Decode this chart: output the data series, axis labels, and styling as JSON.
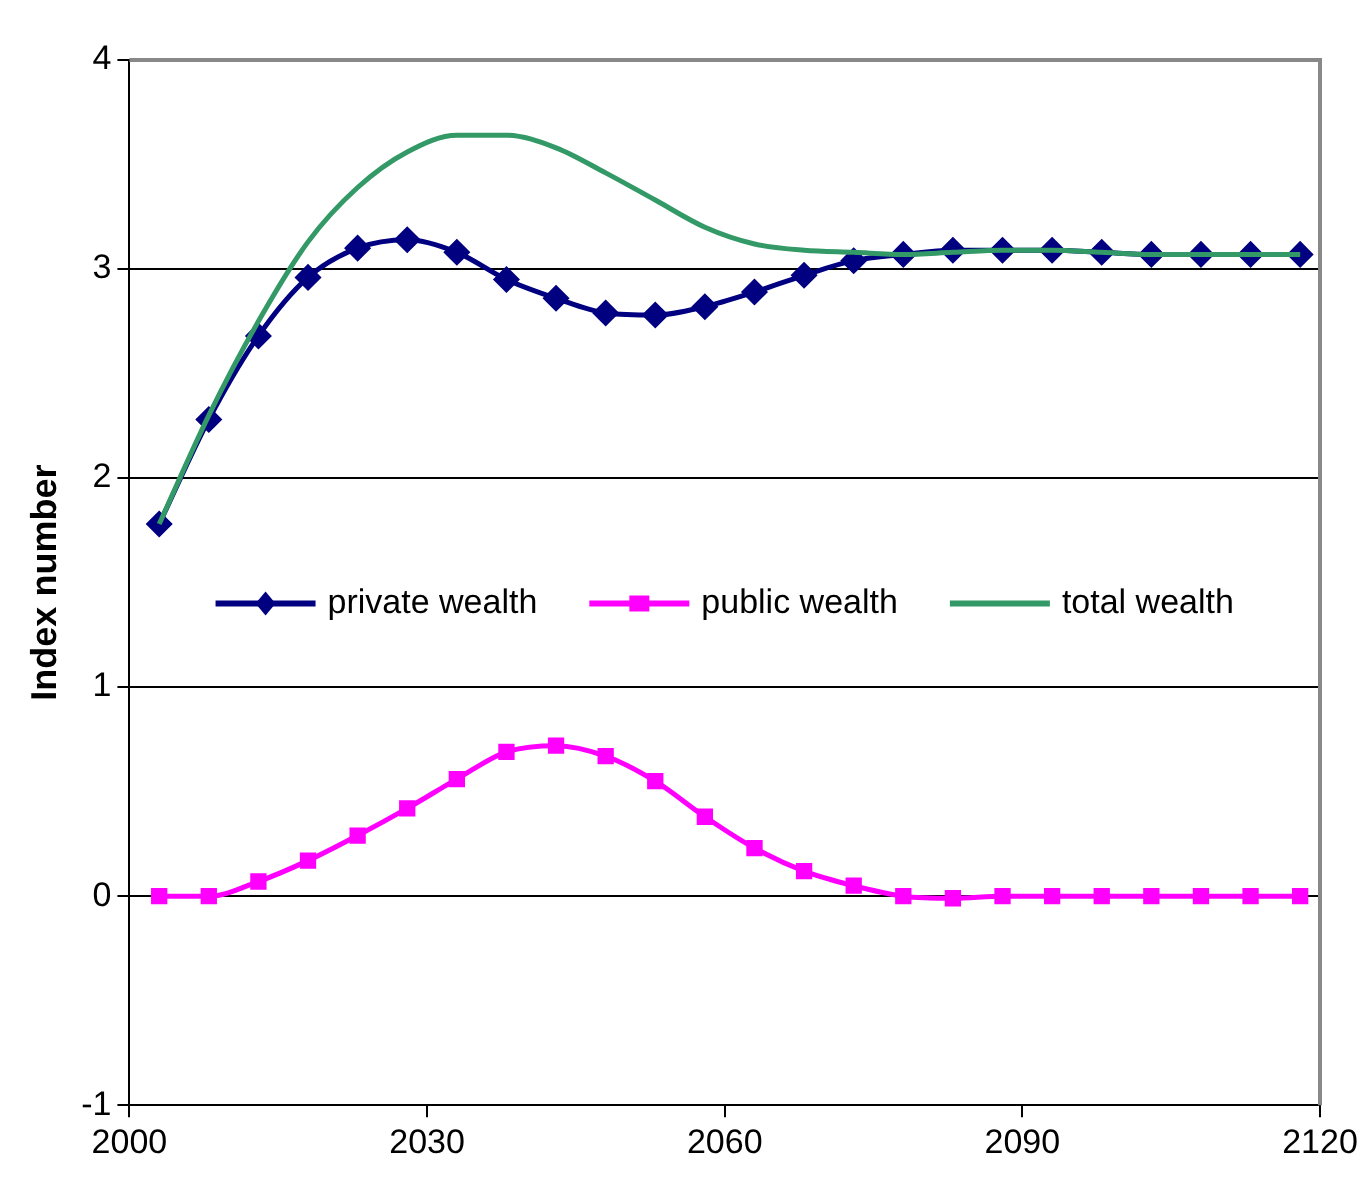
{
  "chart_data": {
    "type": "line",
    "ylabel": "Index number",
    "x": [
      2003,
      2008,
      2013,
      2018,
      2023,
      2028,
      2033,
      2038,
      2043,
      2048,
      2053,
      2058,
      2063,
      2068,
      2073,
      2078,
      2083,
      2088,
      2093,
      2098,
      2103,
      2108,
      2113,
      2118
    ],
    "xlim": [
      2000,
      2120
    ],
    "xticks": [
      2000,
      2030,
      2060,
      2090,
      2120
    ],
    "ylim": [
      -1,
      4
    ],
    "yticks": [
      -1,
      0,
      1,
      2,
      3,
      4
    ],
    "grid": "y",
    "legend": "center",
    "series": [
      {
        "name": "private wealth",
        "color": "#000080",
        "marker": "diamond",
        "values": [
          1.78,
          2.28,
          2.68,
          2.96,
          3.1,
          3.14,
          3.08,
          2.95,
          2.86,
          2.79,
          2.78,
          2.82,
          2.89,
          2.97,
          3.04,
          3.07,
          3.09,
          3.09,
          3.09,
          3.08,
          3.07,
          3.07,
          3.07,
          3.07
        ]
      },
      {
        "name": "public wealth",
        "color": "#ff00ff",
        "marker": "square",
        "values": [
          0,
          0,
          0.07,
          0.17,
          0.29,
          0.42,
          0.56,
          0.69,
          0.72,
          0.67,
          0.55,
          0.38,
          0.23,
          0.12,
          0.05,
          0,
          -0.01,
          0,
          0,
          0,
          0,
          0,
          0,
          0
        ]
      },
      {
        "name": "total wealth",
        "color": "#339966",
        "marker": "none",
        "values": [
          1.78,
          2.3,
          2.75,
          3.13,
          3.39,
          3.56,
          3.64,
          3.64,
          3.58,
          3.46,
          3.33,
          3.2,
          3.12,
          3.09,
          3.08,
          3.07,
          3.08,
          3.09,
          3.09,
          3.08,
          3.07,
          3.07,
          3.07,
          3.07
        ]
      }
    ]
  }
}
